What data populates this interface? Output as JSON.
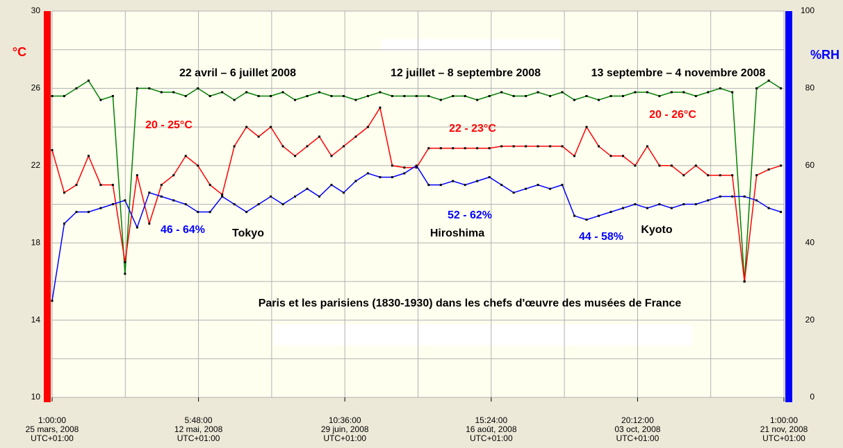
{
  "chart_data": {
    "type": "line",
    "y_label": "°C",
    "y2_label": "%RH",
    "ylim": [
      10,
      30
    ],
    "yticks": [
      10,
      14,
      18,
      22,
      26,
      30
    ],
    "yminorticks": [
      12,
      16,
      20,
      24,
      28
    ],
    "y2lim": [
      0,
      100
    ],
    "y2ticks": [
      0,
      20,
      40,
      60,
      80,
      100
    ],
    "xlim": [
      "2008-03-25T01:00",
      "2008-11-21T01:00"
    ],
    "xticks": [
      {
        "value": "2008-03-25T01:00",
        "label": "1:00:00\n25 mars, 2008\nUTC+01:00"
      },
      {
        "value": "2008-05-12T05:48",
        "label": "5:48:00\n12 mai, 2008\nUTC+01:00"
      },
      {
        "value": "2008-06-29T10:36",
        "label": "10:36:00\n29 juin, 2008\nUTC+01:00"
      },
      {
        "value": "2008-08-16T15:24",
        "label": "15:24:00\n16 août, 2008\nUTC+01:00"
      },
      {
        "value": "2008-10-03T20:12",
        "label": "20:12:00\n03 oct, 2008\nUTC+01:00"
      },
      {
        "value": "2008-11-21T01:00",
        "label": "1:00:00\n21 nov, 2008\nUTC+01:00"
      }
    ],
    "xminorticks": [
      "2008-04-18T03:24",
      "2008-06-05T08:12",
      "2008-07-23T13:00",
      "2008-09-09T17:48",
      "2008-10-27T22:36"
    ],
    "grid": true,
    "markers": true,
    "x": [
      "2008-03-25T01:00",
      "2008-03-29T01:00",
      "2008-04-02T01:00",
      "2008-04-06T01:00",
      "2008-04-10T01:00",
      "2008-04-14T01:00",
      "2008-04-18T01:00",
      "2008-04-22T01:00",
      "2008-04-26T01:00",
      "2008-04-30T01:00",
      "2008-05-04T01:00",
      "2008-05-08T01:00",
      "2008-05-12T01:00",
      "2008-05-16T01:00",
      "2008-05-20T01:00",
      "2008-05-24T01:00",
      "2008-05-28T01:00",
      "2008-06-01T01:00",
      "2008-06-05T01:00",
      "2008-06-09T01:00",
      "2008-06-13T01:00",
      "2008-06-17T01:00",
      "2008-06-21T01:00",
      "2008-06-25T01:00",
      "2008-06-29T01:00",
      "2008-07-03T01:00",
      "2008-07-07T01:00",
      "2008-07-11T01:00",
      "2008-07-15T01:00",
      "2008-07-19T01:00",
      "2008-07-23T01:00",
      "2008-07-27T01:00",
      "2008-07-31T01:00",
      "2008-08-04T01:00",
      "2008-08-08T01:00",
      "2008-08-12T01:00",
      "2008-08-16T01:00",
      "2008-08-20T01:00",
      "2008-08-24T01:00",
      "2008-08-28T01:00",
      "2008-09-01T01:00",
      "2008-09-05T01:00",
      "2008-09-09T01:00",
      "2008-09-13T01:00",
      "2008-09-17T01:00",
      "2008-09-21T01:00",
      "2008-09-25T01:00",
      "2008-09-29T01:00",
      "2008-10-03T01:00",
      "2008-10-07T01:00",
      "2008-10-11T01:00",
      "2008-10-15T01:00",
      "2008-10-19T01:00",
      "2008-10-23T01:00",
      "2008-10-27T01:00",
      "2008-10-31T01:00",
      "2008-11-04T01:00",
      "2008-11-08T01:00",
      "2008-11-12T01:00",
      "2008-11-16T01:00",
      "2008-11-20T01:00"
    ],
    "series": [
      {
        "color": "#008000",
        "axis": "y2",
        "values": [
          78,
          78,
          80,
          82,
          77,
          78,
          32,
          80,
          80,
          79,
          79,
          78,
          80,
          78,
          79,
          77,
          79,
          78,
          78,
          79,
          77,
          78,
          79,
          78,
          78,
          77,
          78,
          79,
          78,
          78,
          78,
          78,
          77,
          78,
          78,
          77,
          78,
          79,
          78,
          78,
          79,
          78,
          79,
          77,
          78,
          77,
          78,
          78,
          79,
          79,
          78,
          79,
          79,
          78,
          79,
          80,
          79,
          30,
          80,
          82,
          80
        ]
      },
      {
        "color": "#ff0000",
        "values": [
          22.8,
          20.6,
          21.0,
          22.5,
          21.0,
          21.0,
          17.0,
          21.5,
          19.0,
          21.0,
          21.5,
          22.5,
          22.0,
          21.0,
          20.5,
          23.0,
          24.0,
          23.5,
          24.0,
          23.0,
          22.5,
          23.0,
          23.5,
          22.5,
          23.0,
          23.5,
          24.0,
          25.0,
          22.0,
          21.9,
          21.9,
          22.9,
          22.9,
          22.9,
          22.9,
          22.9,
          22.9,
          23.0,
          23.0,
          23.0,
          23.0,
          23.0,
          23.0,
          22.5,
          24.0,
          23.0,
          22.5,
          22.5,
          22.0,
          23.0,
          22.0,
          22.0,
          21.5,
          22.0,
          21.5,
          21.5,
          21.5,
          16.0,
          21.5,
          21.8,
          22.0
        ]
      },
      {
        "color": "#0000ff",
        "axis": "y2",
        "values": [
          25,
          45,
          48,
          48,
          49,
          50,
          51,
          44,
          53,
          52,
          51,
          50,
          48,
          48,
          52,
          50,
          48,
          50,
          52,
          50,
          52,
          54,
          52,
          55,
          53,
          56,
          58,
          57,
          57,
          58,
          60,
          55,
          55,
          56,
          55,
          56,
          57,
          55,
          53,
          54,
          55,
          54,
          55,
          47,
          46,
          47,
          48,
          49,
          50,
          49,
          50,
          49,
          50,
          50,
          51,
          52,
          52,
          52,
          51,
          49,
          48
        ]
      }
    ],
    "annotations": [
      "22 avril – 6 juillet 2008",
      "12 juillet – 8 septembre 2008",
      "13 septembre – 4 novembre 2008",
      "20 - 25°C",
      "22 - 23°C",
      "20 - 26°C",
      "46 - 64%",
      "52 - 62%",
      "44 - 58%",
      "Tokyo",
      "Hiroshima",
      "Kyoto",
      "Paris et les parisiens (1830-1930) dans les chefs d'œuvre des musées de France"
    ]
  }
}
